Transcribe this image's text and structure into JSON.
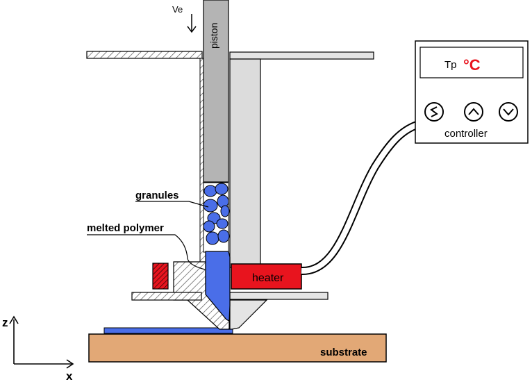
{
  "labels": {
    "ve": "Ve",
    "piston": "piston",
    "granules": "granules",
    "melted_polymer": "melted polymer",
    "heater": "heater",
    "substrate": "substrate",
    "controller": "controller",
    "display_prefix": "Tp",
    "display_unit": "°C",
    "axis_z": "z",
    "axis_x": "x"
  },
  "colors": {
    "heater": "#e8141e",
    "granule": "#4a6ee8",
    "melt": "#4a6ee8",
    "barrel": "#c8c8c8",
    "piston": "#b4b4b4",
    "substrate": "#e2a876",
    "degree_text": "#e8141e"
  },
  "controller_buttons": [
    "power-icon",
    "up-arrow-icon",
    "down-arrow-icon"
  ]
}
